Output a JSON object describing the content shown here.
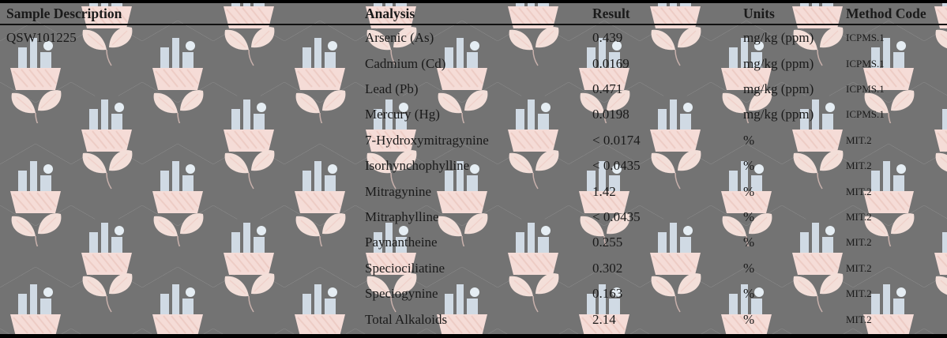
{
  "header": {
    "columns": [
      "Sample Description",
      "Analysis",
      "Result",
      "Units",
      "Method Code"
    ]
  },
  "sample": {
    "id": "QSW101225"
  },
  "results": [
    {
      "analysis": "Arsenic (As)",
      "result": "0.439",
      "units": "mg/kg (ppm)",
      "method_code": "ICPMS.1"
    },
    {
      "analysis": "Cadmium (Cd)",
      "result": "0.0169",
      "units": "mg/kg (ppm)",
      "method_code": "ICPMS.1"
    },
    {
      "analysis": "Lead (Pb)",
      "result": "0.471",
      "units": "mg/kg (ppm)",
      "method_code": "ICPMS.1"
    },
    {
      "analysis": "Mercury (Hg)",
      "result": "0.0198",
      "units": "mg/kg (ppm)",
      "method_code": "ICPMS.1"
    },
    {
      "analysis": "7-Hydroxymitragynine",
      "result": "< 0.0174",
      "units": "%",
      "method_code": "MIT.2"
    },
    {
      "analysis": "Isorhynchophylline",
      "result": "< 0.0435",
      "units": "%",
      "method_code": "MIT.2"
    },
    {
      "analysis": "Mitragynine",
      "result": "1.42",
      "units": "%",
      "method_code": "MIT.2"
    },
    {
      "analysis": "Mitraphylline",
      "result": "< 0.0435",
      "units": "%",
      "method_code": "MIT.2"
    },
    {
      "analysis": "Paynantheine",
      "result": "0.255",
      "units": "%",
      "method_code": "MIT.2"
    },
    {
      "analysis": "Speciociliatine",
      "result": "0.302",
      "units": "%",
      "method_code": "MIT.2"
    },
    {
      "analysis": "Speciogynine",
      "result": "0.163",
      "units": "%",
      "method_code": "MIT.2"
    },
    {
      "analysis": "Total Alkaloids",
      "result": "2.14",
      "units": "%",
      "method_code": "MIT.2"
    }
  ],
  "watermark_icon": "hexagon-leaf-lab-logo-pattern",
  "colors": {
    "text": "#1a1a1a",
    "border": "#000000",
    "wm_hex_line": "#c2d4de",
    "wm_hex_inner": "#b4c9d6",
    "wm_leaf": "#eac4ba",
    "wm_ground": "#ecc0b6",
    "wm_hatch": "#dfa295",
    "wm_bld": "#a9bccd",
    "wm_dot": "#cfdfe9"
  }
}
